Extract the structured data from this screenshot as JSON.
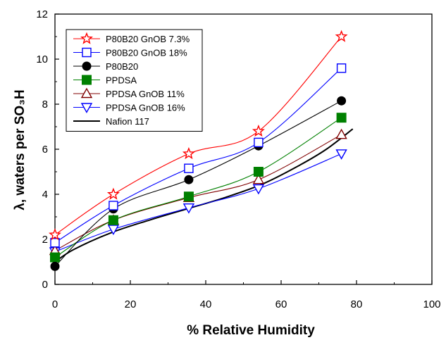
{
  "chart_data": {
    "type": "line",
    "xlabel": "% Relative Humidity",
    "ylabel": "λ, waters per SO₃H",
    "xlim": [
      0,
      100
    ],
    "ylim": [
      0,
      12
    ],
    "xticks": [
      "0",
      "20",
      "40",
      "60",
      "80",
      "100"
    ],
    "yticks": [
      "0",
      "2",
      "4",
      "6",
      "8",
      "10",
      "12"
    ],
    "legend_position": "top-left",
    "grid": false,
    "series": [
      {
        "name": "P80B20 GnOB 7.3%",
        "color": "#ff0000",
        "marker": "star",
        "x": [
          0,
          15.5,
          35.5,
          54,
          76
        ],
        "y": [
          2.2,
          4.0,
          5.8,
          6.8,
          11.0
        ]
      },
      {
        "name": "P80B20 GnOB 18%",
        "color": "#0000ff",
        "marker": "square-open",
        "x": [
          0,
          15.5,
          35.5,
          54,
          76
        ],
        "y": [
          1.85,
          3.5,
          5.15,
          6.3,
          9.6
        ]
      },
      {
        "name": "P80B20",
        "color": "#000000",
        "marker": "circle",
        "x": [
          0,
          15.5,
          35.5,
          54,
          76
        ],
        "y": [
          0.8,
          3.35,
          4.65,
          6.15,
          8.15
        ]
      },
      {
        "name": "PPDSA",
        "color": "#008000",
        "marker": "square-filled",
        "x": [
          0,
          15.5,
          35.5,
          54,
          76
        ],
        "y": [
          1.2,
          2.85,
          3.9,
          5.0,
          7.4
        ]
      },
      {
        "name": "PPDSA GnOB 11%",
        "color": "#800000",
        "marker": "triangle-up-open",
        "x": [
          0,
          15.5,
          35.5,
          54,
          76
        ],
        "y": [
          1.5,
          2.85,
          3.85,
          4.65,
          6.65
        ]
      },
      {
        "name": "PPDSA GnOB 16%",
        "color": "#0000ff",
        "marker": "triangle-down-open",
        "x": [
          0,
          15.5,
          35.5,
          54,
          76
        ],
        "y": [
          1.45,
          2.45,
          3.4,
          4.25,
          5.8
        ]
      },
      {
        "name": "Nafion 117",
        "color": "#000000",
        "marker": "none",
        "x": [
          0,
          5,
          15,
          25,
          35,
          45,
          55,
          65,
          72,
          79
        ],
        "y": [
          1.0,
          1.55,
          2.3,
          2.85,
          3.35,
          3.85,
          4.45,
          5.3,
          6.0,
          6.9
        ]
      }
    ]
  }
}
